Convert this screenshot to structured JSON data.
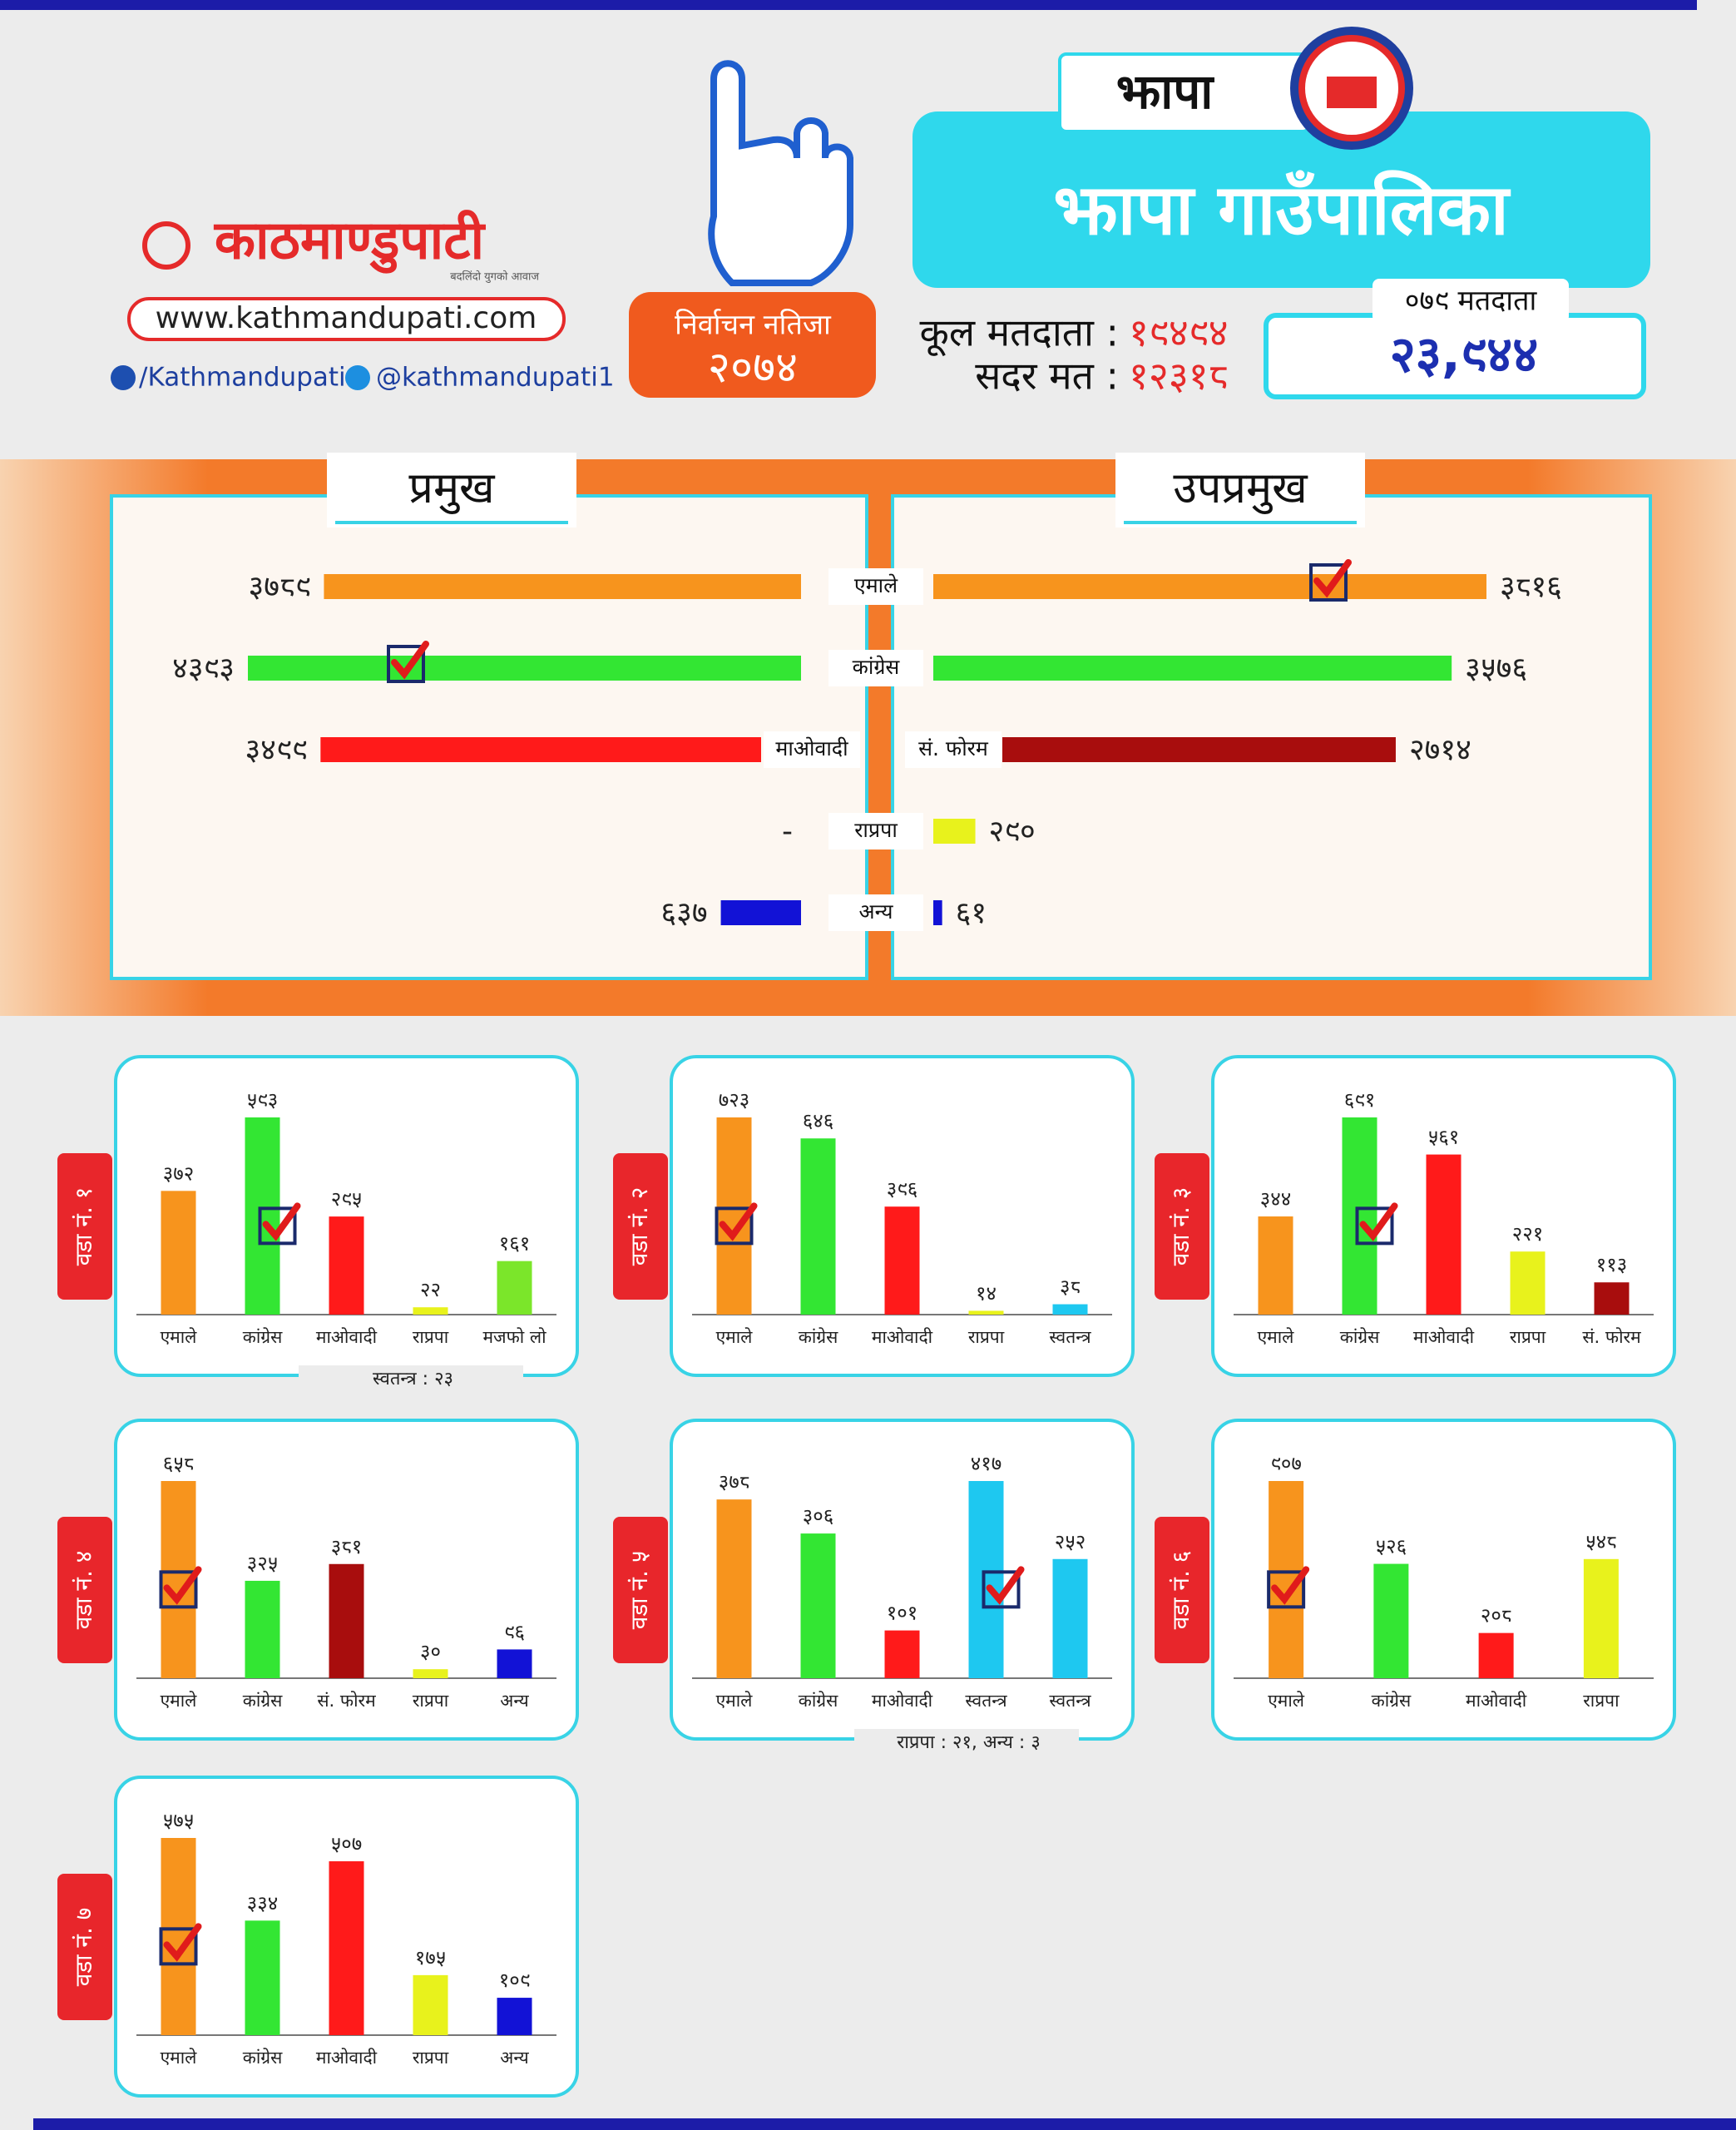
{
  "header": {
    "logo": "काठमाण्डुपाटी",
    "tagline": "बदलिंदो युगको आवाज",
    "website": "www.kathmandupati.com",
    "facebook": "/Kathmandupati",
    "twitter": "@kathmandupati1",
    "badge_title": "निर्वाचन नतिजा",
    "badge_year": "२०७४",
    "district": "झापा",
    "title": "झापा गाउँपालिका",
    "total_voters_label": "कूल मतदाता :",
    "total_voters": "१९४९४",
    "valid_votes_label": "सदर मत :",
    "valid_votes": "१२३१८",
    "voters_079_label": "०७९ मतदाता",
    "voters_079": "२३,९४४"
  },
  "chart_data": [
    {
      "type": "butterfly",
      "categories": [
        "एमाले",
        "कांग्रेस",
        null,
        "राप्रपा",
        "अन्य"
      ],
      "series": [
        {
          "name": "प्रमुख",
          "category_labels": [
            null,
            null,
            "माओवादी",
            null,
            null
          ],
          "values": [
            3789,
            4393,
            3499,
            null,
            637
          ],
          "value_labels": [
            "३७८९",
            "४३९३",
            "३४९९",
            "-",
            "६३७"
          ],
          "colors": [
            "#f7941d",
            "#33e633",
            "#ff1a1a",
            "#e8f21c",
            "#1212d6"
          ],
          "winner": 1
        },
        {
          "name": "उपप्रमुख",
          "category_labels": [
            null,
            null,
            "सं. फोरम",
            null,
            null
          ],
          "values": [
            3816,
            3576,
            2714,
            290,
            61
          ],
          "value_labels": [
            "३८१६",
            "३५७६",
            "२७१४",
            "२९०",
            "६१"
          ],
          "colors": [
            "#f7941d",
            "#33e633",
            "#a80d0d",
            "#e8f21c",
            "#1212d6"
          ],
          "winner": 0
        }
      ]
    },
    {
      "type": "bar",
      "title": "वडा नं. १",
      "categories": [
        "एमाले",
        "कांग्रेस",
        "माओवादी",
        "राप्रपा",
        "मजफो लो"
      ],
      "values": [
        372,
        593,
        295,
        22,
        161
      ],
      "value_labels": [
        "३७२",
        "५९३",
        "२९५",
        "२२",
        "१६१"
      ],
      "colors": [
        "#f7941d",
        "#33e633",
        "#ff1a1a",
        "#e8f21c",
        "#7be62a"
      ],
      "winner": 1,
      "note": "स्वतन्त्र : २३"
    },
    {
      "type": "bar",
      "title": "वडा नं. २",
      "categories": [
        "एमाले",
        "कांग्रेस",
        "माओवादी",
        "राप्रपा",
        "स्वतन्त्र"
      ],
      "values": [
        723,
        646,
        396,
        14,
        38
      ],
      "value_labels": [
        "७२३",
        "६४६",
        "३९६",
        "१४",
        "३८"
      ],
      "colors": [
        "#f7941d",
        "#33e633",
        "#ff1a1a",
        "#e8f21c",
        "#1ec8f0"
      ],
      "winner": 0
    },
    {
      "type": "bar",
      "title": "वडा नं. ३",
      "categories": [
        "एमाले",
        "कांग्रेस",
        "माओवादी",
        "राप्रपा",
        "सं. फोरम"
      ],
      "values": [
        344,
        691,
        561,
        221,
        113
      ],
      "value_labels": [
        "३४४",
        "६९१",
        "५६१",
        "२२१",
        "११३"
      ],
      "colors": [
        "#f7941d",
        "#33e633",
        "#ff1a1a",
        "#e8f21c",
        "#a80d0d"
      ],
      "winner": 1
    },
    {
      "type": "bar",
      "title": "वडा नं. ४",
      "categories": [
        "एमाले",
        "कांग्रेस",
        "सं. फोरम",
        "राप्रपा",
        "अन्य"
      ],
      "values": [
        658,
        325,
        381,
        30,
        96
      ],
      "value_labels": [
        "६५८",
        "३२५",
        "३८१",
        "३०",
        "९६"
      ],
      "colors": [
        "#f7941d",
        "#33e633",
        "#a80d0d",
        "#e8f21c",
        "#1212d6"
      ],
      "winner": 0
    },
    {
      "type": "bar",
      "title": "वडा नं. ५",
      "categories": [
        "एमाले",
        "कांग्रेस",
        "माओवादी",
        "स्वतन्त्र",
        "स्वतन्त्र"
      ],
      "values": [
        378,
        306,
        101,
        417,
        252
      ],
      "value_labels": [
        "३७८",
        "३०६",
        "१०१",
        "४१७",
        "२५२"
      ],
      "colors": [
        "#f7941d",
        "#33e633",
        "#ff1a1a",
        "#1ec8f0",
        "#1ec8f0"
      ],
      "winner": 3,
      "note": "राप्रपा : २१, अन्य : ३"
    },
    {
      "type": "bar",
      "title": "वडा नं. ६",
      "categories": [
        "एमाले",
        "कांग्रेस",
        "माओवादी",
        "राप्रपा"
      ],
      "values": [
        907,
        526,
        208,
        548
      ],
      "value_labels": [
        "९०७",
        "५२६",
        "२०८",
        "५४८"
      ],
      "colors": [
        "#f7941d",
        "#33e633",
        "#ff1a1a",
        "#e8f21c"
      ],
      "winner": 0
    },
    {
      "type": "bar",
      "title": "वडा नं. ७",
      "categories": [
        "एमाले",
        "कांग्रेस",
        "माओवादी",
        "राप्रपा",
        "अन्य"
      ],
      "values": [
        575,
        334,
        507,
        175,
        109
      ],
      "value_labels": [
        "५७५",
        "३३४",
        "५०७",
        "१७५",
        "१०९"
      ],
      "colors": [
        "#f7941d",
        "#33e633",
        "#ff1a1a",
        "#e8f21c",
        "#1212d6"
      ],
      "winner": 0
    }
  ]
}
